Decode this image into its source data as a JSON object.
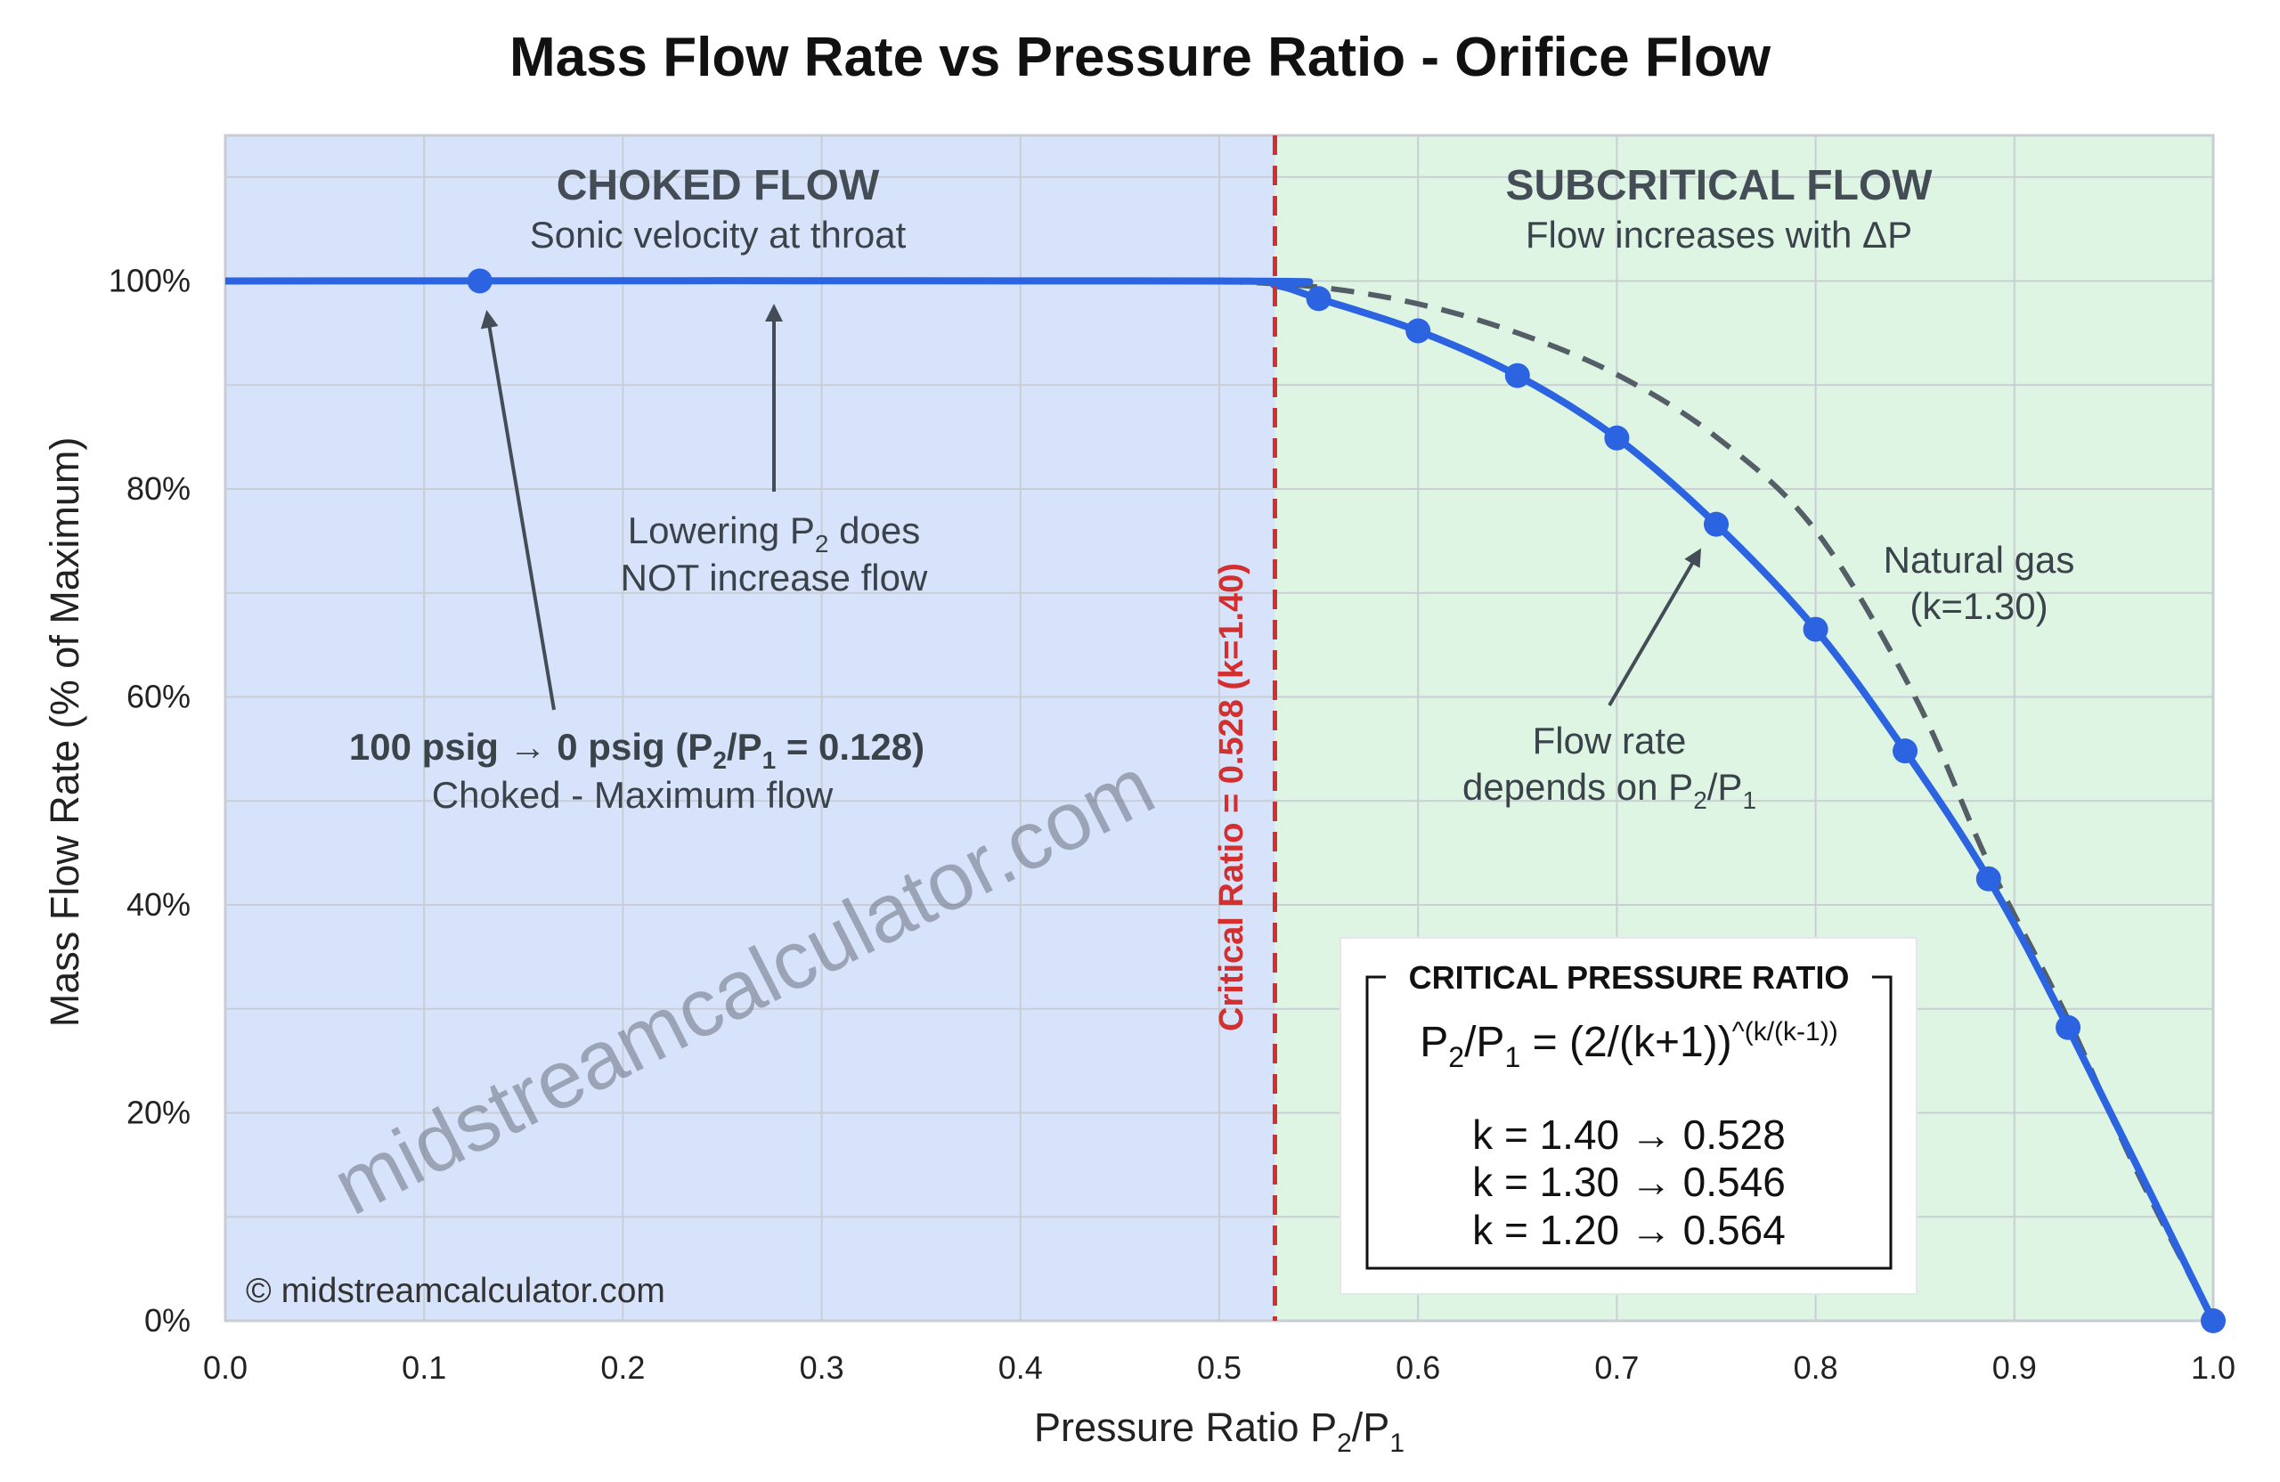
{
  "chart_data": {
    "type": "line",
    "title": "Mass Flow Rate vs Pressure Ratio - Orifice Flow",
    "xlabel": {
      "text": "Pressure Ratio P",
      "sub1": "2",
      "mid": "/P",
      "sub2": "1"
    },
    "ylabel": "Mass Flow Rate (% of Maximum)",
    "xlim": [
      0,
      1
    ],
    "ylim": [
      0,
      114
    ],
    "x_ticks": [
      "0.0",
      "0.1",
      "0.2",
      "0.3",
      "0.4",
      "0.5",
      "0.6",
      "0.7",
      "0.8",
      "0.9",
      "1.0"
    ],
    "y_ticks": [
      "0%",
      "20%",
      "40%",
      "60%",
      "80%",
      "100%"
    ],
    "grid": true,
    "regions": [
      {
        "label": "CHOKED FLOW",
        "sublabel": "Sonic velocity at throat",
        "x_range": [
          0,
          0.528
        ],
        "color": "#d7e3fb"
      },
      {
        "label": "SUBCRITICAL FLOW",
        "sublabel": "Flow increases with ΔP",
        "x_range": [
          0.528,
          1.0
        ],
        "color": "#dff5e3"
      }
    ],
    "critical_line": {
      "x": 0.528,
      "label": "Critical Ratio = 0.528 (k=1.40)",
      "color": "#d32f2f"
    },
    "series": [
      {
        "style": "solid",
        "color": "#2b63e0",
        "line": [
          [
            0,
            100
          ],
          [
            0.5,
            100
          ],
          [
            0.528,
            99.6
          ],
          [
            0.55,
            98.3
          ],
          [
            0.6,
            95.2
          ],
          [
            0.65,
            90.9
          ],
          [
            0.7,
            84.9
          ],
          [
            0.75,
            76.6
          ],
          [
            0.8,
            66.5
          ],
          [
            0.845,
            54.8
          ],
          [
            0.887,
            42.5
          ],
          [
            0.927,
            28.2
          ],
          [
            1.0,
            0
          ]
        ],
        "markers": [
          [
            0.128,
            100
          ],
          [
            0.55,
            98.3
          ],
          [
            0.6,
            95.2
          ],
          [
            0.65,
            90.9
          ],
          [
            0.7,
            84.9
          ],
          [
            0.75,
            76.6
          ],
          [
            0.8,
            66.5
          ],
          [
            0.845,
            54.8
          ],
          [
            0.887,
            42.5
          ],
          [
            0.927,
            28.2
          ],
          [
            1.0,
            0
          ]
        ]
      },
      {
        "style": "dashed",
        "color": "#555e66",
        "line": [
          [
            0.5,
            100
          ],
          [
            0.55,
            99.4
          ],
          [
            0.6,
            97.8
          ],
          [
            0.65,
            95
          ],
          [
            0.7,
            91
          ],
          [
            0.75,
            85
          ],
          [
            0.8,
            76
          ],
          [
            0.85,
            60
          ],
          [
            0.887,
            44
          ],
          [
            0.927,
            29
          ],
          [
            0.96,
            15
          ],
          [
            1.0,
            0
          ]
        ]
      }
    ],
    "annotations": {
      "lowering": {
        "l1a": "Lowering P",
        "l1sub": "2",
        "l1b": " does",
        "l2": "NOT increase flow"
      },
      "psig": {
        "a": "100 psig → 0 psig (P",
        "s1": "2",
        "b": "/P",
        "s2": "1",
        "c": " = 0.128)",
        "l2": "Choked - Maximum flow"
      },
      "natural_gas": {
        "l1": "Natural gas",
        "l2": "(k=1.30)"
      },
      "flow_rate": {
        "l1": "Flow rate",
        "l2a": "depends on P",
        "s1": "2",
        "l2b": "/P",
        "s2": "1"
      }
    },
    "formula_box": {
      "title": "CRITICAL PRESSURE RATIO",
      "formula": {
        "a": "P",
        "s1": "2",
        "b": "/P",
        "s2": "1",
        "c": " = (2/(k+1))",
        "sup": "^(k/(k-1))"
      },
      "rows": [
        "k = 1.40 → 0.528",
        "k = 1.30 → 0.546",
        "k = 1.20 → 0.564"
      ]
    },
    "watermark": "midstreamcalculator.com",
    "copyright": "© midstreamcalculator.com"
  }
}
